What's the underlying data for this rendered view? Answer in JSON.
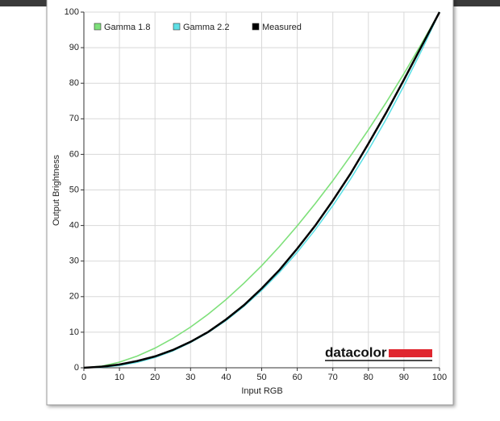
{
  "chart_data": {
    "type": "line",
    "xlabel": "Input RGB",
    "ylabel": "Output Brightness",
    "watermark": "datacolor",
    "x": [
      0,
      5,
      10,
      15,
      20,
      25,
      30,
      35,
      40,
      45,
      50,
      55,
      60,
      65,
      70,
      75,
      80,
      85,
      90,
      95,
      100
    ],
    "series": [
      {
        "name": "Gamma 1.8",
        "color": "#7ee07a",
        "values": [
          0,
          0.46,
          1.58,
          3.29,
          5.52,
          8.25,
          11.45,
          15.1,
          19.2,
          23.76,
          28.7,
          34.1,
          39.9,
          46.1,
          52.6,
          59.6,
          66.9,
          74.6,
          82.7,
          91.2,
          100
        ]
      },
      {
        "name": "Gamma 2.2",
        "color": "#5ee0e6",
        "values": [
          0,
          0.14,
          0.63,
          1.54,
          2.9,
          4.74,
          7.1,
          9.93,
          13.3,
          17.26,
          21.8,
          26.85,
          32.5,
          38.76,
          45.6,
          53.1,
          61.2,
          69.9,
          79.3,
          89.3,
          100
        ]
      },
      {
        "name": "Measured",
        "color": "#000000",
        "values": [
          0,
          0.3,
          0.9,
          1.9,
          3.2,
          5.0,
          7.3,
          10.1,
          13.6,
          17.6,
          22.3,
          27.5,
          33.5,
          39.9,
          47.0,
          54.6,
          63.0,
          71.7,
          81.0,
          90.5,
          100
        ]
      }
    ],
    "xlim": [
      0,
      100
    ],
    "ylim": [
      0,
      100
    ],
    "xticks": [
      0,
      10,
      20,
      30,
      40,
      50,
      60,
      70,
      80,
      90,
      100
    ],
    "yticks": [
      0,
      10,
      20,
      30,
      40,
      50,
      60,
      70,
      80,
      90,
      100
    ],
    "grid": true
  }
}
